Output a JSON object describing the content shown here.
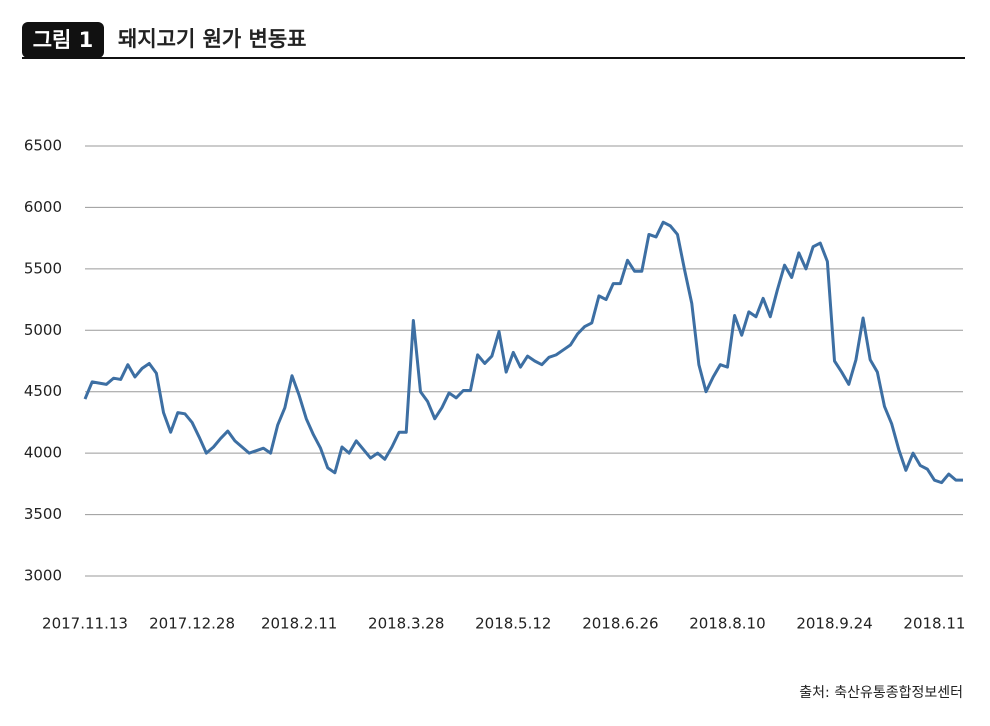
{
  "header": {
    "badge": "그림 1"
  },
  "chart_data": {
    "type": "line",
    "title": "돼지고기 원가 변동표",
    "source": "출처: 축산유통종합정보센터",
    "categories": [
      "2017.11.13",
      null,
      null,
      null,
      null,
      null,
      null,
      null,
      null,
      null,
      null,
      null,
      null,
      null,
      null,
      "2017.12.28",
      null,
      null,
      null,
      null,
      null,
      null,
      null,
      null,
      null,
      null,
      null,
      null,
      null,
      null,
      "2018.2.11",
      null,
      null,
      null,
      null,
      null,
      null,
      null,
      null,
      null,
      null,
      null,
      null,
      null,
      null,
      "2018.3.28",
      null,
      null,
      null,
      null,
      null,
      null,
      null,
      null,
      null,
      null,
      null,
      null,
      null,
      null,
      "2018.5.12",
      null,
      null,
      null,
      null,
      null,
      null,
      null,
      null,
      null,
      null,
      null,
      null,
      null,
      null,
      "2018.6.26",
      null,
      null,
      null,
      null,
      null,
      null,
      null,
      null,
      null,
      null,
      null,
      null,
      null,
      null,
      "2018.8.10",
      null,
      null,
      null,
      null,
      null,
      null,
      null,
      null,
      null,
      null,
      null,
      null,
      null,
      null,
      "2018.9.24",
      null,
      null,
      null,
      null,
      null,
      null,
      null,
      null,
      null,
      null,
      null,
      null,
      null,
      "2018.11",
      null,
      null,
      null,
      null
    ],
    "series": [
      {
        "name": "돼지고기 원가",
        "color": "#3d6fa3",
        "values": [
          4440,
          4580,
          4570,
          4560,
          4610,
          4600,
          4720,
          4620,
          4690,
          4730,
          4650,
          4330,
          4170,
          4330,
          4320,
          4250,
          4130,
          4000,
          4050,
          4120,
          4180,
          4100,
          4050,
          4000,
          4020,
          4040,
          4000,
          4230,
          4370,
          4630,
          4470,
          4280,
          4150,
          4040,
          3880,
          3840,
          4050,
          4000,
          4100,
          4030,
          3960,
          4000,
          3950,
          4050,
          4170,
          4170,
          5080,
          4500,
          4420,
          4280,
          4370,
          4490,
          4450,
          4510,
          4510,
          4800,
          4730,
          4790,
          4990,
          4660,
          4820,
          4700,
          4790,
          4750,
          4720,
          4780,
          4800,
          4840,
          4880,
          4970,
          5030,
          5060,
          5280,
          5250,
          5380,
          5380,
          5570,
          5480,
          5480,
          5780,
          5760,
          5880,
          5850,
          5780,
          5490,
          5220,
          4720,
          4500,
          4620,
          4720,
          4700,
          5120,
          4960,
          5150,
          5110,
          5260,
          5110,
          5330,
          5530,
          5430,
          5630,
          5500,
          5680,
          5710,
          5560,
          4750,
          4660,
          4560,
          4760,
          5100,
          4760,
          4660,
          4380,
          4240,
          4030,
          3860,
          4000,
          3900,
          3870,
          3780,
          3760,
          3830,
          3780,
          3780
        ]
      }
    ],
    "ylim": [
      3000,
      6500
    ],
    "yticks": [
      3000,
      3500,
      4000,
      4500,
      5000,
      5500,
      6000,
      6500
    ],
    "grid": true
  }
}
